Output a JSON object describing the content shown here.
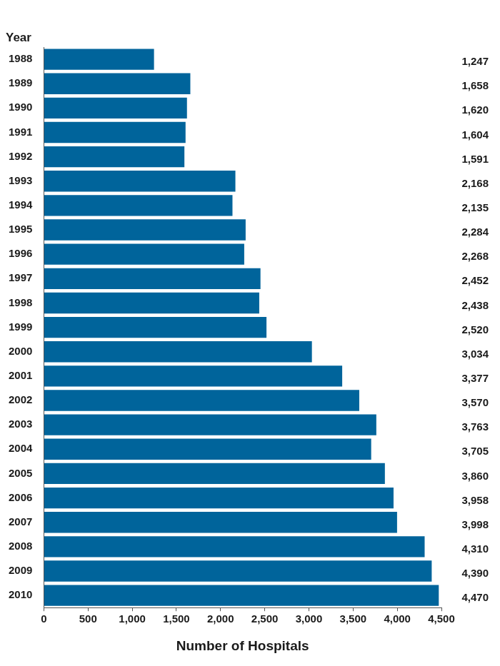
{
  "chart_data": {
    "type": "bar",
    "orientation": "horizontal",
    "x_label": "Number of Hospitals",
    "y_label": "Year",
    "categories": [
      "1988",
      "1989",
      "1990",
      "1991",
      "1992",
      "1993",
      "1994",
      "1995",
      "1996",
      "1997",
      "1998",
      "1999",
      "2000",
      "2001",
      "2002",
      "2003",
      "2004",
      "2005",
      "2006",
      "2007",
      "2008",
      "2009",
      "2010"
    ],
    "values": [
      1247,
      1658,
      1620,
      1604,
      1591,
      2168,
      2135,
      2284,
      2268,
      2452,
      2438,
      2520,
      3034,
      3377,
      3570,
      3763,
      3705,
      3860,
      3958,
      3998,
      4310,
      4390,
      4470
    ],
    "value_labels": [
      "1,247",
      "1,658",
      "1,620",
      "1,604",
      "1,591",
      "2,168",
      "2,135",
      "2,284",
      "2,268",
      "2,452",
      "2,438",
      "2,520",
      "3,034",
      "3,377",
      "3,570",
      "3,763",
      "3,705",
      "3,860",
      "3,958",
      "3,998",
      "4,310",
      "4,390",
      "4,470"
    ],
    "data_labels": true,
    "color": "#00649b",
    "xlim": [
      0,
      4500
    ],
    "xticks": [
      0,
      500,
      {
        "value": 1000,
        "label": "1,000"
      },
      {
        "value": 1500,
        "label": "1,500"
      },
      {
        "value": 2000,
        "label": "2,000"
      },
      {
        "value": 2500,
        "label": "2,500"
      },
      {
        "value": 3000,
        "label": "3,000"
      },
      {
        "value": 3500,
        "label": "3,500"
      },
      {
        "value": 4000,
        "label": "4,000"
      },
      {
        "value": 4500,
        "label": "4,500"
      }
    ],
    "grid": false
  }
}
